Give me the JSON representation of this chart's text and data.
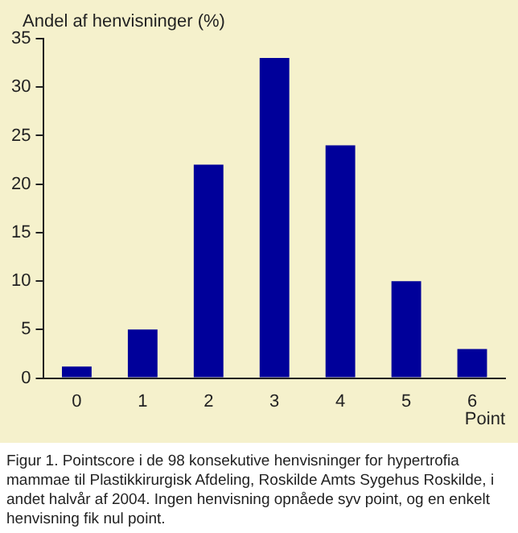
{
  "chart_data": {
    "type": "bar",
    "ylabel": "Andel af henvisninger (%)",
    "xlabel": "Point",
    "categories": [
      "0",
      "1",
      "2",
      "3",
      "4",
      "5",
      "6"
    ],
    "values": [
      1.2,
      5,
      22,
      33,
      24,
      10,
      3
    ],
    "color": "#00009a",
    "ylim": [
      0,
      35
    ],
    "yticks": [
      0,
      5,
      10,
      15,
      20,
      25,
      30,
      35
    ],
    "grid": false,
    "legend": false,
    "annotations": [
      "Figur 1. Pointscore i de 98 konsekutive henvisninger for hypertrofia mammae til Plastikkirurgisk Afdeling, Roskilde Amts Sygehus Roskilde, i andet halvår af 2004. Ingen henvisning opnåede syv point, og en enkelt henvisning fik nul point."
    ]
  }
}
